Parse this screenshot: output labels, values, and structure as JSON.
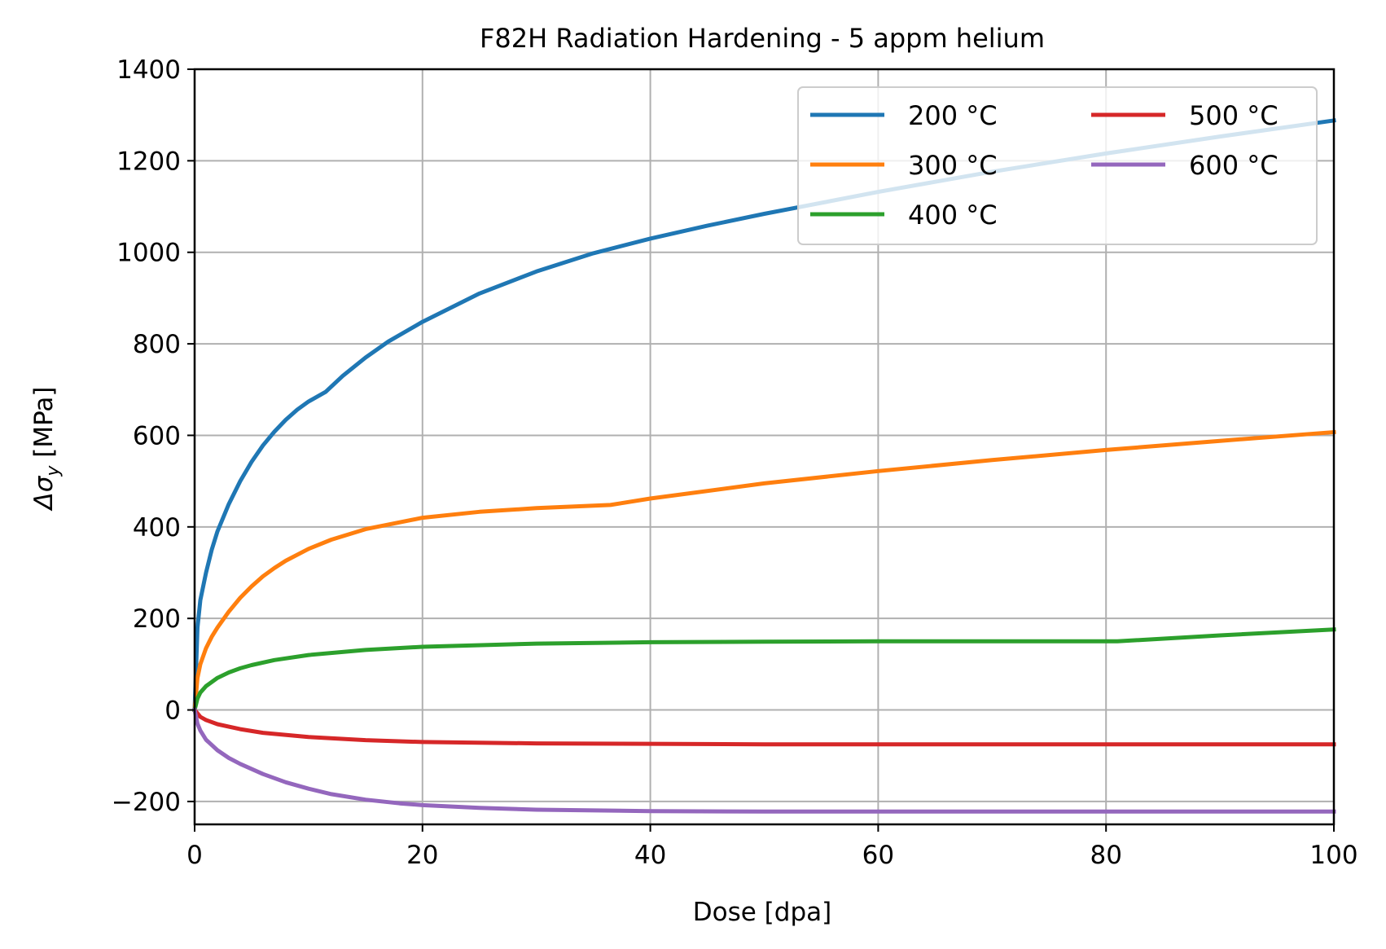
{
  "chart_data": {
    "type": "line",
    "title": "F82H Radiation Hardening - 5 appm helium",
    "xlabel": "Dose [dpa]",
    "ylabel_prefix": "Δσ",
    "ylabel_sub": "y",
    "ylabel_suffix": " [MPa]",
    "xlim": [
      0,
      100
    ],
    "ylim": [
      -250,
      1400
    ],
    "xticks": [
      0,
      20,
      40,
      60,
      80,
      100
    ],
    "xtick_labels": [
      "0",
      "20",
      "40",
      "60",
      "80",
      "100"
    ],
    "yticks": [
      -200,
      0,
      200,
      400,
      600,
      800,
      1000,
      1200,
      1400
    ],
    "ytick_labels": [
      "−200",
      "0",
      "200",
      "400",
      "600",
      "800",
      "1000",
      "1200",
      "1400"
    ],
    "grid": true,
    "legend_position": "top-right",
    "series": [
      {
        "name": "200 °C",
        "color": "#1f77b4",
        "x": [
          0,
          0.25,
          0.5,
          1,
          1.5,
          2,
          3,
          4,
          5,
          6,
          7,
          8,
          9,
          10,
          11.5,
          13,
          15,
          17,
          20,
          25,
          30,
          35,
          40,
          45,
          50,
          60,
          70,
          80,
          90,
          100
        ],
        "y": [
          0,
          180,
          240,
          300,
          350,
          390,
          450,
          500,
          542,
          578,
          608,
          634,
          656,
          674,
          695,
          730,
          770,
          805,
          848,
          910,
          958,
          998,
          1030,
          1058,
          1084,
          1132,
          1176,
          1216,
          1253,
          1288
        ]
      },
      {
        "name": "300 °C",
        "color": "#ff7f0e",
        "x": [
          0,
          0.25,
          0.5,
          1,
          1.5,
          2,
          3,
          4,
          5,
          6,
          7,
          8,
          10,
          12,
          15,
          20,
          25,
          30,
          36.5,
          40,
          50,
          60,
          70,
          80,
          90,
          100
        ],
        "y": [
          0,
          70,
          100,
          135,
          160,
          180,
          215,
          245,
          270,
          292,
          310,
          326,
          352,
          372,
          395,
          420,
          433,
          441,
          448,
          462,
          495,
          522,
          546,
          568,
          588,
          607
        ]
      },
      {
        "name": "400 °C",
        "color": "#2ca02c",
        "x": [
          0,
          0.25,
          0.5,
          1,
          2,
          3,
          4,
          5,
          7,
          10,
          15,
          20,
          30,
          40,
          50,
          60,
          70,
          81,
          90,
          100
        ],
        "y": [
          0,
          25,
          38,
          52,
          70,
          82,
          91,
          98,
          109,
          120,
          131,
          138,
          145,
          148,
          149,
          150,
          150,
          150,
          163,
          176
        ]
      },
      {
        "name": "500 °C",
        "color": "#d62728",
        "x": [
          0,
          0.5,
          1,
          2,
          4,
          6,
          10,
          15,
          20,
          30,
          40,
          50,
          60,
          70,
          80,
          90,
          100
        ],
        "y": [
          0,
          -15,
          -22,
          -31,
          -42,
          -50,
          -59,
          -66,
          -70,
          -73,
          -74,
          -75,
          -75,
          -75,
          -75,
          -75,
          -75
        ]
      },
      {
        "name": "600 °C",
        "color": "#9467bd",
        "x": [
          0,
          0.25,
          0.5,
          1,
          2,
          3,
          4,
          6,
          8,
          10,
          12,
          15,
          18,
          20,
          25,
          30,
          40,
          50,
          60,
          70,
          80,
          90,
          100
        ],
        "y": [
          0,
          -30,
          -45,
          -65,
          -88,
          -105,
          -118,
          -140,
          -158,
          -172,
          -184,
          -196,
          -204,
          -208,
          -214,
          -218,
          -221,
          -222,
          -222,
          -222,
          -222,
          -222,
          -222
        ]
      }
    ]
  }
}
